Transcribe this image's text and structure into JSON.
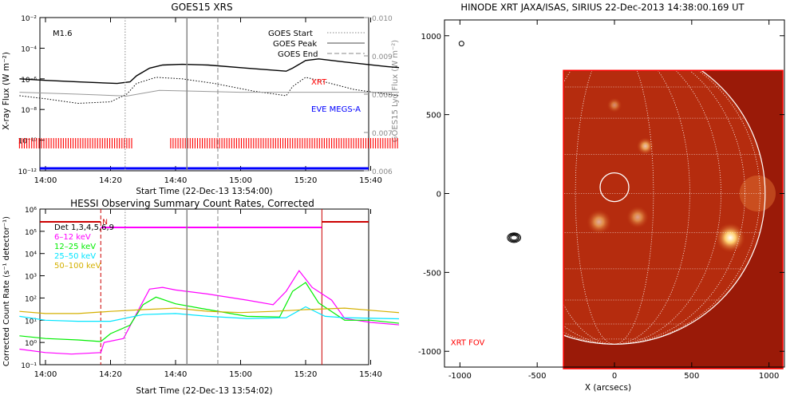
{
  "chart_data": [
    {
      "type": "line",
      "title": "GOES15 XRS",
      "xlabel": "Start Time (22-Dec-13 13:54:00)",
      "ylabel": "X-ray Flux (W m⁻²)",
      "y2label": "GOES15 Lyα Flux (W m⁻²)",
      "x_ticks": [
        "14:00",
        "14:20",
        "14:40",
        "15:00",
        "15:20",
        "15:40"
      ],
      "y_scale": "log",
      "y_ticks": [
        "10⁻²",
        "10⁻⁴",
        "10⁻⁶",
        "10⁻⁸",
        "10⁻¹⁰",
        "10⁻¹²"
      ],
      "y2_ticks": [
        "0.010",
        "0.009",
        "0.008",
        "0.007",
        "0.006"
      ],
      "annotation": "M1.6",
      "legend": [
        "GOES Start",
        "GOES Peak",
        "GOES End"
      ],
      "labels": {
        "xrt": "XRT",
        "eve": "EVE MEGS-A"
      },
      "markers_min": {
        "start": 24.5,
        "peak": 43.5,
        "end": 53
      },
      "series": [
        {
          "style": "solid-black",
          "points": [
            [
              -8,
              -6.0
            ],
            [
              0,
              -6.1
            ],
            [
              10,
              -6.2
            ],
            [
              22,
              -6.3
            ],
            [
              26,
              -6.2
            ],
            [
              28,
              -5.8
            ],
            [
              32,
              -5.3
            ],
            [
              36,
              -5.1
            ],
            [
              42,
              -5.05
            ],
            [
              50,
              -5.1
            ],
            [
              62,
              -5.3
            ],
            [
              74,
              -5.5
            ],
            [
              76,
              -5.3
            ],
            [
              80,
              -4.8
            ],
            [
              84,
              -4.7
            ],
            [
              92,
              -4.9
            ],
            [
              105,
              -5.2
            ],
            [
              116,
              -5.4
            ]
          ]
        },
        {
          "style": "dotted-black",
          "points": [
            [
              -8,
              -7.1
            ],
            [
              0,
              -7.3
            ],
            [
              10,
              -7.6
            ],
            [
              20,
              -7.5
            ],
            [
              25,
              -7.0
            ],
            [
              28,
              -6.3
            ],
            [
              34,
              -5.9
            ],
            [
              42,
              -6.0
            ],
            [
              52,
              -6.3
            ],
            [
              64,
              -6.8
            ],
            [
              74,
              -7.1
            ],
            [
              76,
              -6.5
            ],
            [
              80,
              -5.9
            ],
            [
              84,
              -6.1
            ],
            [
              95,
              -6.7
            ],
            [
              105,
              -7.0
            ],
            [
              116,
              -7.3
            ]
          ]
        },
        {
          "style": "grey-lyman",
          "points": [
            [
              -8,
              0.00805
            ],
            [
              10,
              0.008
            ],
            [
              25,
              0.00795
            ],
            [
              35,
              0.0081
            ],
            [
              60,
              0.00805
            ],
            [
              90,
              0.00805
            ],
            [
              116,
              0.00805
            ]
          ]
        }
      ],
      "xrt_gaps_min": [
        [
          27,
          38
        ]
      ],
      "eve_level": -12
    },
    {
      "type": "line",
      "title": "HESSI Observing Summary Count Rates, Corrected",
      "xlabel": "Start Time (22-Dec-13 13:54:02)",
      "ylabel": "Corrected Count Rate (s⁻¹ detector⁻¹)",
      "x_ticks": [
        "14:00",
        "14:20",
        "14:40",
        "15:00",
        "15:20",
        "15:40"
      ],
      "y_scale": "log",
      "y_ticks": [
        "10⁶",
        "10⁵",
        "10⁴",
        "10³",
        "10²",
        "10¹",
        "10⁰",
        "10⁻¹"
      ],
      "legend": [
        {
          "name": "Det 1,3,4,5,6,9",
          "color": "#000000"
        },
        {
          "name": "6–12 keV",
          "color": "#ff00ff"
        },
        {
          "name": "12–25 keV",
          "color": "#00ee00"
        },
        {
          "name": "25–50 keV",
          "color": "#00e5ff"
        },
        {
          "name": "50–100 keV",
          "color": "#d4b000"
        }
      ],
      "flag_label": "N",
      "markers_min": {
        "start": 24.5,
        "peak": 43.5,
        "end": 53
      },
      "series": [
        {
          "name": "6–12 keV",
          "color": "#ff00ff",
          "points": [
            [
              -8,
              0.5
            ],
            [
              0,
              0.35
            ],
            [
              8,
              0.3
            ],
            [
              17,
              0.35
            ],
            [
              18,
              1.0
            ],
            [
              24,
              1.5
            ],
            [
              28,
              20
            ],
            [
              32,
              250
            ],
            [
              36,
              300
            ],
            [
              40,
              230
            ],
            [
              50,
              150
            ],
            [
              62,
              80
            ],
            [
              70,
              50
            ],
            [
              74,
              200
            ],
            [
              78,
              1700
            ],
            [
              82,
              300
            ],
            [
              88,
              80
            ],
            [
              92,
              12
            ],
            [
              100,
              8
            ],
            [
              110,
              6
            ],
            [
              116,
              5
            ]
          ]
        },
        {
          "name": "12–25 keV",
          "color": "#00ee00",
          "points": [
            [
              -8,
              2
            ],
            [
              0,
              1.5
            ],
            [
              10,
              1.3
            ],
            [
              17,
              1.1
            ],
            [
              20,
              2.5
            ],
            [
              26,
              6
            ],
            [
              30,
              50
            ],
            [
              34,
              110
            ],
            [
              40,
              55
            ],
            [
              50,
              30
            ],
            [
              62,
              15
            ],
            [
              72,
              14
            ],
            [
              76,
              200
            ],
            [
              80,
              500
            ],
            [
              84,
              60
            ],
            [
              92,
              10
            ],
            [
              100,
              10
            ],
            [
              110,
              7
            ],
            [
              116,
              6
            ]
          ]
        },
        {
          "name": "25–50 keV",
          "color": "#00e5ff",
          "points": [
            [
              -8,
              15
            ],
            [
              0,
              10
            ],
            [
              10,
              9
            ],
            [
              20,
              9
            ],
            [
              30,
              18
            ],
            [
              40,
              20
            ],
            [
              50,
              15
            ],
            [
              62,
              12
            ],
            [
              74,
              13
            ],
            [
              80,
              40
            ],
            [
              86,
              15
            ],
            [
              92,
              13
            ],
            [
              104,
              12
            ],
            [
              116,
              11
            ]
          ]
        },
        {
          "name": "50–100 keV",
          "color": "#d4b000",
          "points": [
            [
              -8,
              25
            ],
            [
              0,
              20
            ],
            [
              10,
              20
            ],
            [
              20,
              25
            ],
            [
              30,
              30
            ],
            [
              40,
              35
            ],
            [
              50,
              25
            ],
            [
              60,
              22
            ],
            [
              70,
              25
            ],
            [
              80,
              30
            ],
            [
              92,
              35
            ],
            [
              104,
              25
            ],
            [
              116,
              18
            ]
          ]
        }
      ]
    },
    {
      "type": "heatmap",
      "title": "HINODE XRT JAXA/ISAS, SIRIUS 22-Dec-2013 14:38:00.169 UT",
      "xlabel": "X (arcsecs)",
      "x_ticks": [
        "-1000",
        "-500",
        "0",
        "500",
        "1000"
      ],
      "y_ticks": [
        "1000",
        "500",
        "0",
        "-500",
        "-1000"
      ],
      "xlim": [
        -1100,
        1100
      ],
      "ylim": [
        -1100,
        1100
      ],
      "fov_label": "XRT FOV",
      "limb_radius_arcsec": 975,
      "bright_regions": [
        {
          "x": 750,
          "y": -280,
          "r": 60,
          "strength": 1.0
        },
        {
          "x": 200,
          "y": 300,
          "r": 35,
          "strength": 0.7
        },
        {
          "x": -100,
          "y": -180,
          "r": 50,
          "strength": 0.6
        },
        {
          "x": 150,
          "y": -150,
          "r": 45,
          "strength": 0.55
        },
        {
          "x": 0,
          "y": 560,
          "r": 30,
          "strength": 0.45
        }
      ]
    }
  ]
}
